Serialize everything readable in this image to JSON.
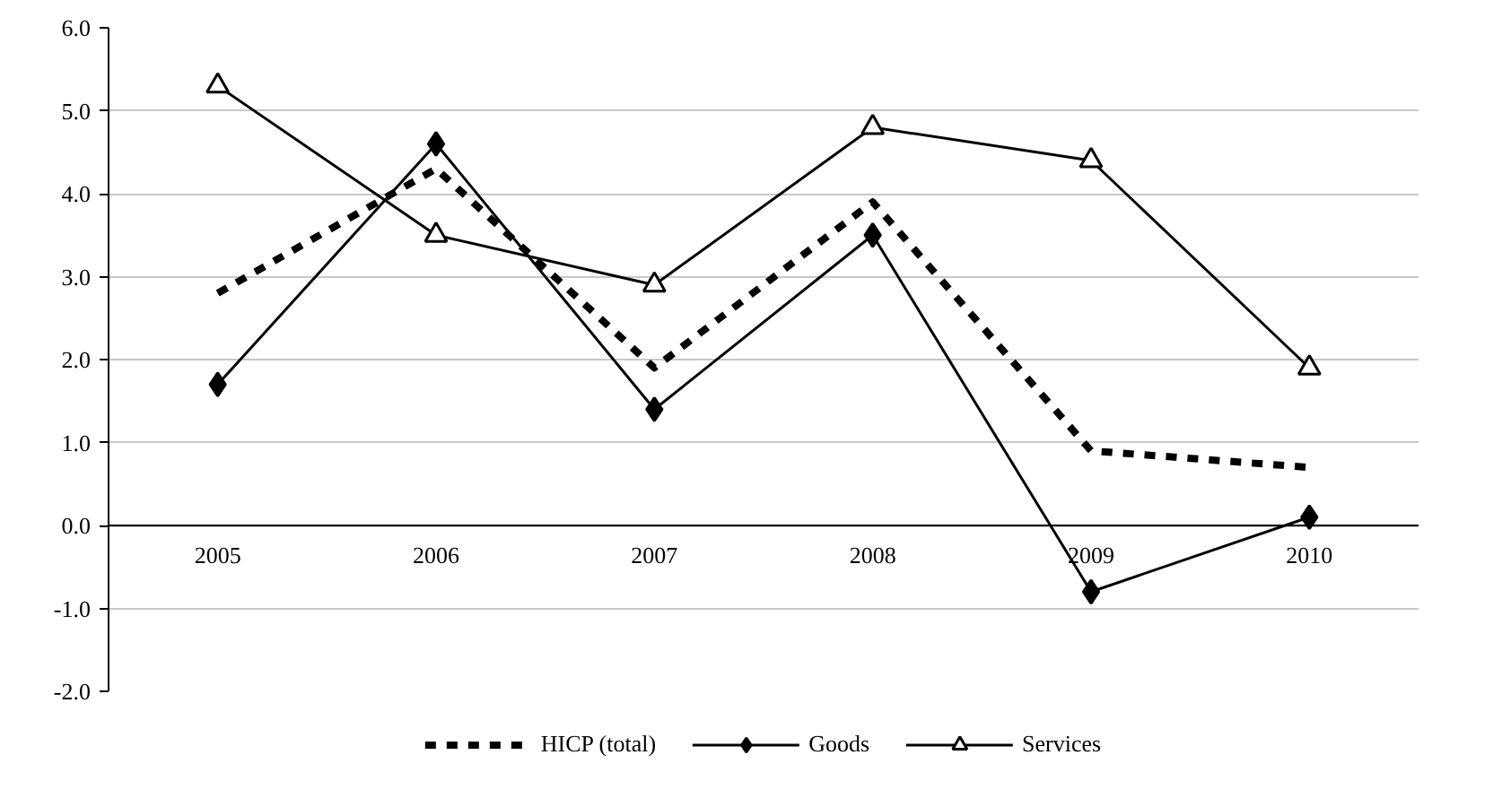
{
  "chart_data": {
    "type": "line",
    "categories": [
      "2005",
      "2006",
      "2007",
      "2008",
      "2009",
      "2010"
    ],
    "series": [
      {
        "name": "HICP (total)",
        "color": "#000000",
        "line_style": "dashed",
        "marker": "none",
        "values": [
          2.8,
          4.3,
          1.9,
          3.9,
          0.9,
          0.7
        ]
      },
      {
        "name": "Goods",
        "color": "#000000",
        "line_style": "solid",
        "marker": "diamond",
        "values": [
          1.7,
          4.6,
          1.4,
          3.5,
          -0.8,
          0.1
        ]
      },
      {
        "name": "Services",
        "color": "#000000",
        "line_style": "solid",
        "marker": "triangle",
        "values": [
          5.3,
          3.5,
          2.9,
          4.8,
          4.4,
          1.9
        ]
      }
    ],
    "ylim": [
      -2,
      6
    ],
    "yticks": [
      {
        "value": -2,
        "label": "-2.0"
      },
      {
        "value": -1,
        "label": "-1.0"
      },
      {
        "value": 0,
        "label": "0.0"
      },
      {
        "value": 1,
        "label": "1.0"
      },
      {
        "value": 2,
        "label": "2.0"
      },
      {
        "value": 3,
        "label": "3.0"
      },
      {
        "value": 4,
        "label": "4.0"
      },
      {
        "value": 5,
        "label": "5.0"
      },
      {
        "value": 6,
        "label": "6.0"
      }
    ],
    "grid": "y",
    "legend": "bottom"
  }
}
